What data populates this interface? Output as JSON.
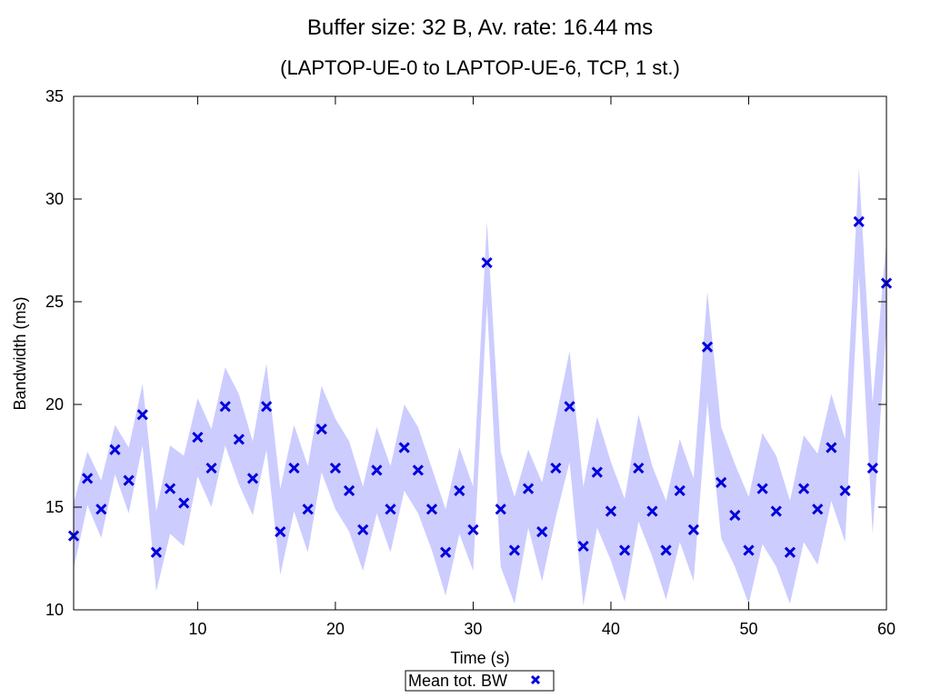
{
  "chart_data": {
    "type": "scatter",
    "title": "Buffer size: 32 B, Av. rate: 16.44 ms",
    "subtitle": "(LAPTOP-UE-0 to LAPTOP-UE-6, TCP, 1 st.)",
    "xlabel": "Time (s)",
    "ylabel": "Bandwidth (ms)",
    "xlim": [
      1,
      60
    ],
    "ylim": [
      10,
      35
    ],
    "xticks": [
      10,
      20,
      30,
      40,
      50,
      60
    ],
    "yticks": [
      10,
      15,
      20,
      25,
      30,
      35
    ],
    "grid": false,
    "legend_position": "bottom-center",
    "series": [
      {
        "name": "Mean tot. BW",
        "marker": "x",
        "color": "#0000dd",
        "band_color": "#ccccff",
        "x": [
          1,
          2,
          3,
          4,
          5,
          6,
          7,
          8,
          9,
          10,
          11,
          12,
          13,
          14,
          15,
          16,
          17,
          18,
          19,
          20,
          21,
          22,
          23,
          24,
          25,
          26,
          27,
          28,
          29,
          30,
          31,
          32,
          33,
          34,
          35,
          36,
          37,
          38,
          39,
          40,
          41,
          42,
          43,
          44,
          45,
          46,
          47,
          48,
          49,
          50,
          51,
          52,
          53,
          54,
          55,
          56,
          57,
          58,
          59,
          60
        ],
        "y": [
          13.6,
          16.4,
          14.9,
          17.8,
          16.3,
          19.5,
          12.8,
          15.9,
          15.2,
          18.4,
          16.9,
          19.9,
          18.3,
          16.4,
          19.9,
          13.8,
          16.9,
          14.9,
          18.8,
          16.9,
          15.8,
          13.9,
          16.8,
          14.9,
          17.9,
          16.8,
          14.9,
          12.8,
          15.8,
          13.9,
          26.9,
          14.9,
          12.9,
          15.9,
          13.8,
          16.9,
          19.9,
          13.1,
          16.7,
          14.8,
          12.9,
          16.9,
          14.8,
          12.9,
          15.8,
          13.9,
          22.8,
          16.2,
          14.6,
          12.9,
          15.9,
          14.8,
          12.8,
          15.9,
          14.9,
          17.9,
          15.8,
          28.9,
          16.9,
          25.9
        ],
        "upper": [
          15.2,
          17.7,
          16.3,
          19.0,
          17.9,
          21.0,
          14.8,
          18.0,
          17.5,
          20.3,
          18.8,
          21.8,
          20.5,
          18.2,
          22.0,
          15.9,
          19.0,
          17.0,
          20.9,
          19.3,
          18.2,
          16.0,
          18.9,
          17.0,
          20.0,
          18.9,
          16.9,
          14.9,
          17.9,
          16.0,
          28.9,
          17.7,
          15.5,
          17.8,
          16.2,
          19.3,
          22.6,
          16.0,
          19.4,
          17.2,
          15.4,
          19.5,
          17.0,
          15.3,
          18.3,
          16.4,
          25.5,
          18.9,
          17.1,
          15.5,
          18.6,
          17.5,
          15.3,
          18.5,
          17.6,
          20.5,
          18.3,
          31.5,
          20.1,
          28.0
        ],
        "lower": [
          12.0,
          15.1,
          13.5,
          16.6,
          14.7,
          18.0,
          10.9,
          13.7,
          13.1,
          16.5,
          15.0,
          18.0,
          16.1,
          14.6,
          17.8,
          11.7,
          14.8,
          12.8,
          16.7,
          14.9,
          13.8,
          11.9,
          14.7,
          12.8,
          15.8,
          14.7,
          12.9,
          10.7,
          13.7,
          11.9,
          24.9,
          12.1,
          10.3,
          14.0,
          11.4,
          14.5,
          17.2,
          10.2,
          14.0,
          12.4,
          10.4,
          14.3,
          12.6,
          10.5,
          13.3,
          11.4,
          20.1,
          13.5,
          12.1,
          10.3,
          13.2,
          12.1,
          10.3,
          13.3,
          12.2,
          15.3,
          13.3,
          26.3,
          13.7,
          23.8
        ]
      }
    ]
  }
}
